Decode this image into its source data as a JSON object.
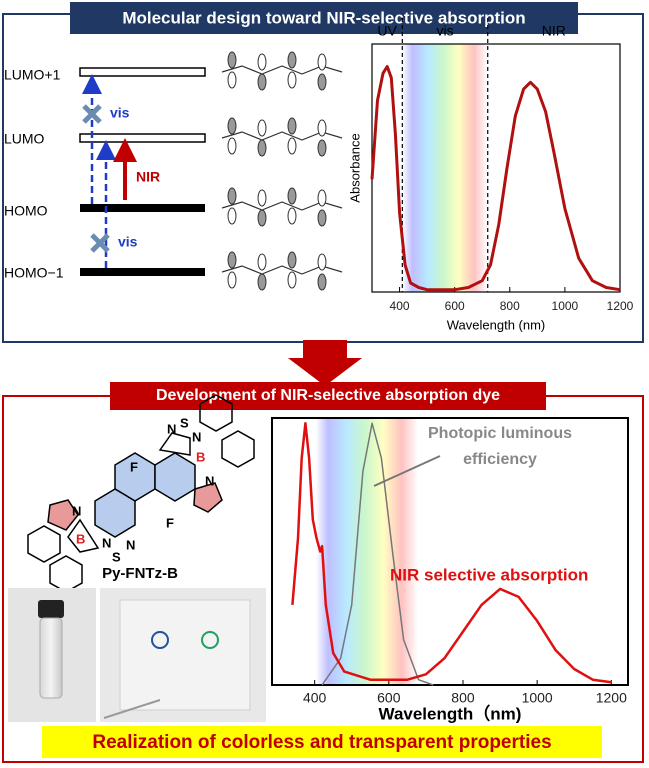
{
  "top_title": "Molecular design toward NIR-selective absorption",
  "energy_diagram": {
    "levels": [
      "LUMO+1",
      "LUMO",
      "HOMO",
      "HOMO−1"
    ],
    "arrow_labels": [
      "vis",
      "NIR",
      "vis"
    ]
  },
  "bottom_title": "Development of NIR-selective absorption dye",
  "molecule": {
    "name": "Py-FNTz-B",
    "atoms": [
      "N",
      "S",
      "N",
      "B",
      "N",
      "F",
      "F",
      "N",
      "B",
      "N",
      "S",
      "N"
    ]
  },
  "footer": "Realization of colorless and transparent properties",
  "chart_data": [
    {
      "type": "line",
      "x_label": "Wavelength (nm)",
      "y_label": "Absorbance",
      "xlim": [
        300,
        1200
      ],
      "xticks": [
        400,
        600,
        800,
        1000,
        1200
      ],
      "ylim": [
        0,
        1.1
      ],
      "regions": [
        "UV",
        "vis",
        "NIR"
      ],
      "boundaries": [
        410,
        720
      ],
      "color": "#b01010",
      "x": [
        300,
        320,
        340,
        355,
        370,
        385,
        400,
        420,
        440,
        470,
        500,
        600,
        650,
        700,
        730,
        760,
        790,
        820,
        850,
        875,
        900,
        930,
        960,
        1000,
        1050,
        1100,
        1150,
        1200
      ],
      "values": [
        0.5,
        0.85,
        0.97,
        1.0,
        0.95,
        0.7,
        0.35,
        0.12,
        0.04,
        0.02,
        0.01,
        0.01,
        0.02,
        0.05,
        0.12,
        0.3,
        0.55,
        0.78,
        0.9,
        0.93,
        0.9,
        0.8,
        0.62,
        0.37,
        0.15,
        0.05,
        0.02,
        0.01
      ]
    },
    {
      "type": "line",
      "x_label": "Wavelength（nm)",
      "xlim": [
        285,
        1245
      ],
      "xticks": [
        400,
        600,
        800,
        1000,
        1200
      ],
      "ylim": [
        0,
        1
      ],
      "series": [
        {
          "name": "NIR selective absorption",
          "color": "#e01010",
          "x": [
            340,
            355,
            365,
            375,
            385,
            395,
            405,
            415,
            420,
            430,
            450,
            480,
            550,
            650,
            700,
            750,
            800,
            850,
            900,
            950,
            1000,
            1050,
            1100,
            1150,
            1200
          ],
          "values": [
            0.3,
            0.55,
            0.85,
            0.98,
            0.85,
            0.62,
            0.55,
            0.5,
            0.52,
            0.3,
            0.12,
            0.05,
            0.02,
            0.02,
            0.04,
            0.1,
            0.2,
            0.3,
            0.36,
            0.33,
            0.24,
            0.13,
            0.06,
            0.02,
            0.01
          ]
        },
        {
          "name": "Photopic luminous efficiency",
          "color": "#777777",
          "x": [
            420,
            470,
            500,
            530,
            555,
            580,
            610,
            640,
            680,
            720
          ],
          "values": [
            0,
            0.1,
            0.3,
            0.8,
            0.98,
            0.85,
            0.5,
            0.17,
            0.02,
            0
          ]
        }
      ]
    }
  ]
}
